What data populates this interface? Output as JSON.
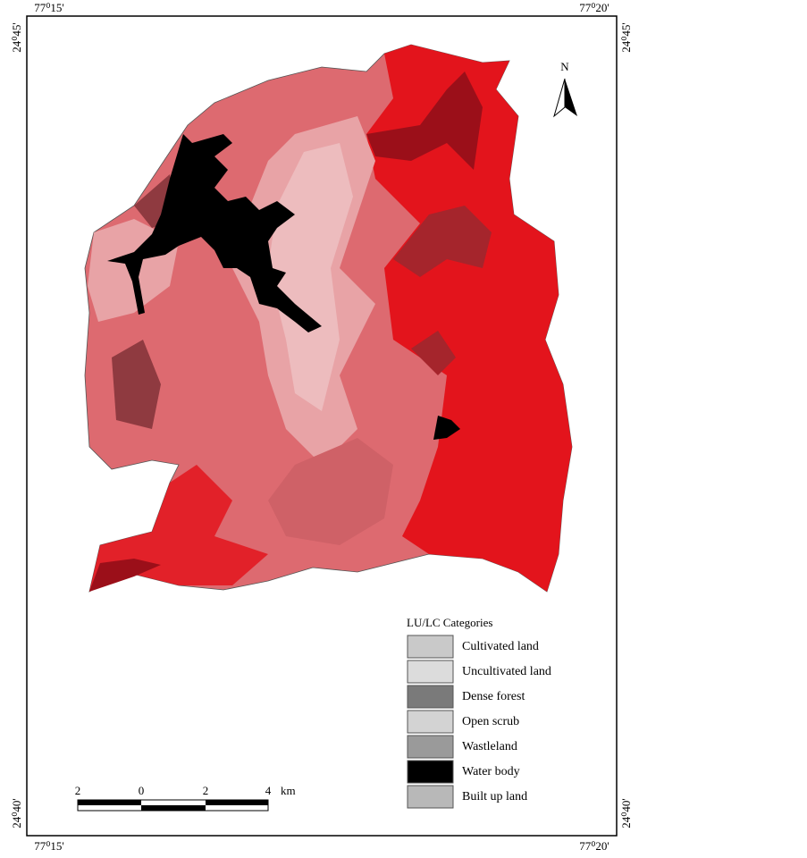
{
  "map": {
    "coordinates": {
      "top_left": "77⁰15'",
      "top_right": "77⁰20'",
      "bottom_left": "77⁰15'",
      "bottom_right": "77⁰20'",
      "left_top": "24⁰45'",
      "left_bottom": "24⁰40'",
      "right_top": "24⁰45'",
      "right_bottom": "24⁰40'"
    },
    "north_label": "N",
    "legend": {
      "title": "LU/LC Categories",
      "items": [
        "Cultivated land",
        "Uncultivated land",
        "Dense forest",
        "Open scrub",
        "Wastleland",
        "Water body",
        "Built up land"
      ]
    },
    "scale_bar": {
      "labels": [
        "2",
        "0",
        "2",
        "4"
      ],
      "unit": "km"
    }
  }
}
